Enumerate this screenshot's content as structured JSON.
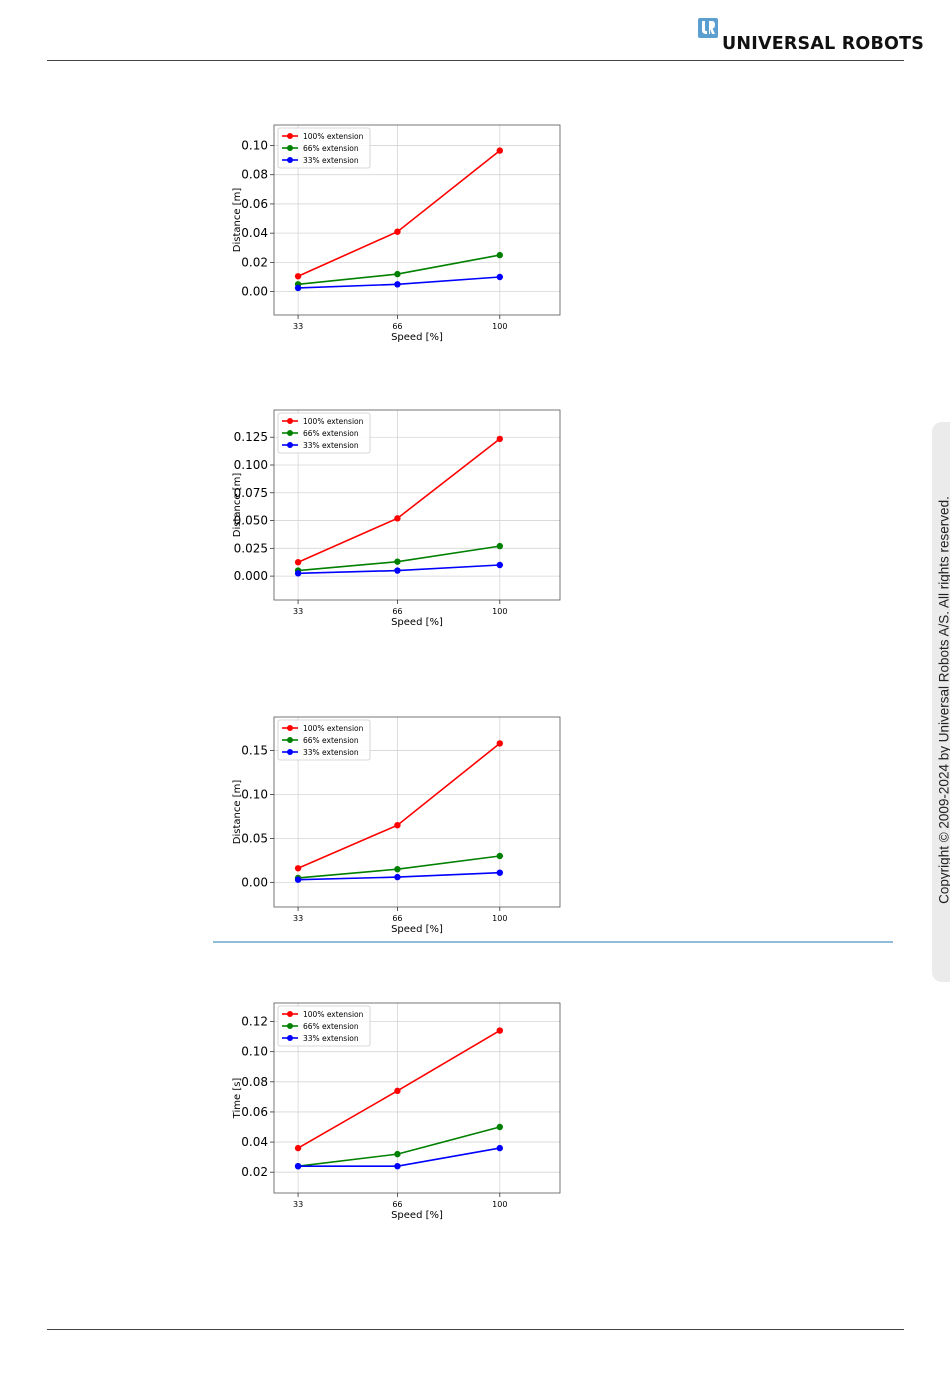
{
  "header": {
    "brand": "UNIVERSAL ROBOTS",
    "logo_icon": "ur-logo-icon",
    "accent_color": "#5b9fd1"
  },
  "sidebar": {
    "copyright": "Copyright © 2009-2024 by Universal Robots A/S. All rights reserved."
  },
  "colors": {
    "series_100": "#ff0000",
    "series_66": "#008000",
    "series_33": "#0000ff",
    "section_rule": "#8fbcd9"
  },
  "chart_data": [
    {
      "type": "line",
      "xlabel": "Speed [%]",
      "ylabel": "Distance [m]",
      "categories": [
        "33",
        "66",
        "100"
      ],
      "x": [
        33,
        66,
        100
      ],
      "ylim": [
        -0.016,
        0.114
      ],
      "yticks": [
        0.0,
        0.02,
        0.04,
        0.06,
        0.08,
        0.1
      ],
      "ytick_labels": [
        "0.00",
        "0.02",
        "0.04",
        "0.06",
        "0.08",
        "0.10"
      ],
      "grid": true,
      "legend": "top-left",
      "series": [
        {
          "name": "100% extension",
          "color": "#ff0000",
          "values": [
            0.0105,
            0.041,
            0.0965
          ]
        },
        {
          "name": "66% extension",
          "color": "#008000",
          "values": [
            0.005,
            0.012,
            0.025
          ]
        },
        {
          "name": "33% extension",
          "color": "#0000ff",
          "values": [
            0.0025,
            0.005,
            0.01
          ]
        }
      ]
    },
    {
      "type": "line",
      "xlabel": "Speed [%]",
      "ylabel": "Distance [m]",
      "categories": [
        "33",
        "66",
        "100"
      ],
      "x": [
        33,
        66,
        100
      ],
      "ylim": [
        -0.0215,
        0.1495
      ],
      "yticks": [
        0.0,
        0.025,
        0.05,
        0.075,
        0.1,
        0.125
      ],
      "ytick_labels": [
        "0.000",
        "0.025",
        "0.050",
        "0.075",
        "0.100",
        "0.125"
      ],
      "grid": true,
      "legend": "top-left",
      "series": [
        {
          "name": "100% extension",
          "color": "#ff0000",
          "values": [
            0.0125,
            0.052,
            0.1235
          ]
        },
        {
          "name": "66% extension",
          "color": "#008000",
          "values": [
            0.005,
            0.013,
            0.027
          ]
        },
        {
          "name": "33% extension",
          "color": "#0000ff",
          "values": [
            0.0025,
            0.005,
            0.01
          ]
        }
      ]
    },
    {
      "type": "line",
      "xlabel": "Speed [%]",
      "ylabel": "Distance [m]",
      "categories": [
        "33",
        "66",
        "100"
      ],
      "x": [
        33,
        66,
        100
      ],
      "ylim": [
        -0.028,
        0.188
      ],
      "yticks": [
        0.0,
        0.05,
        0.1,
        0.15
      ],
      "ytick_labels": [
        "0.00",
        "0.05",
        "0.10",
        "0.15"
      ],
      "grid": true,
      "legend": "top-left",
      "series": [
        {
          "name": "100% extension",
          "color": "#ff0000",
          "values": [
            0.016,
            0.065,
            0.158
          ]
        },
        {
          "name": "66% extension",
          "color": "#008000",
          "values": [
            0.005,
            0.015,
            0.03
          ]
        },
        {
          "name": "33% extension",
          "color": "#0000ff",
          "values": [
            0.003,
            0.006,
            0.011
          ]
        }
      ]
    },
    {
      "type": "line",
      "xlabel": "Speed [%]",
      "ylabel": "Time [s]",
      "categories": [
        "33",
        "66",
        "100"
      ],
      "x": [
        33,
        66,
        100
      ],
      "ylim": [
        0.0062,
        0.1323
      ],
      "yticks": [
        0.02,
        0.04,
        0.06,
        0.08,
        0.1,
        0.12
      ],
      "ytick_labels": [
        "0.02",
        "0.04",
        "0.06",
        "0.08",
        "0.10",
        "0.12"
      ],
      "grid": true,
      "legend": "top-left",
      "series": [
        {
          "name": "100% extension",
          "color": "#ff0000",
          "values": [
            0.036,
            0.074,
            0.114
          ]
        },
        {
          "name": "66% extension",
          "color": "#008000",
          "values": [
            0.024,
            0.032,
            0.05
          ]
        },
        {
          "name": "33% extension",
          "color": "#0000ff",
          "values": [
            0.024,
            0.024,
            0.036
          ]
        }
      ]
    }
  ]
}
